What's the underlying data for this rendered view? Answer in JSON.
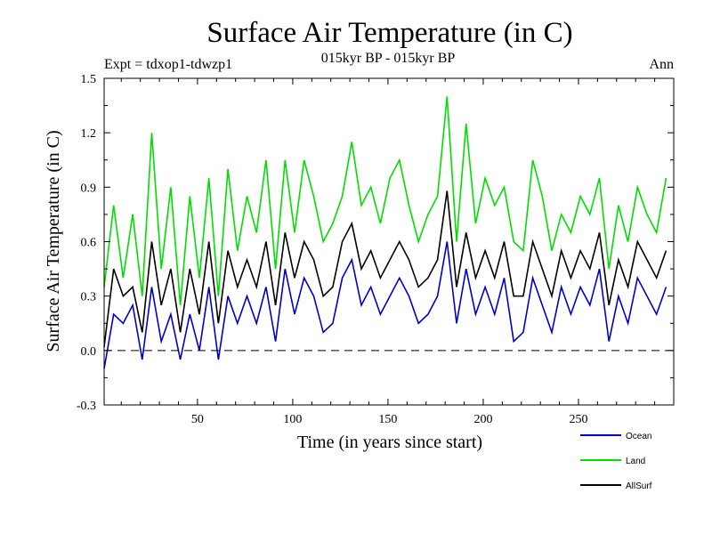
{
  "chart_data": {
    "type": "line",
    "title": "Surface Air Temperature (in C)",
    "subtitle": "015kyr BP - 015kyr BP",
    "experiment_label": "Expt = tdxop1-tdwzp1",
    "period_label": "Ann",
    "xlabel": "Time (in years since start)",
    "ylabel": "Surface Air Temperature (in C)",
    "xlim": [
      1,
      300
    ],
    "ylim": [
      -0.3,
      1.5
    ],
    "x_ticks": [
      50,
      100,
      150,
      200,
      250
    ],
    "x_tick_labels": [
      "50",
      "100",
      "150",
      "200",
      "250"
    ],
    "y_ticks": [
      -0.3,
      0.0,
      0.3,
      0.6,
      0.9,
      1.2,
      1.5
    ],
    "y_tick_labels": [
      "-0.3",
      "0.0",
      "0.3",
      "0.6",
      "0.9",
      "1.2",
      "1.5"
    ],
    "reference_line": 0.0,
    "legend": [
      {
        "name": "Ocean",
        "color": "#0000cc"
      },
      {
        "name": "Land",
        "color": "#00dd00"
      },
      {
        "name": "AllSurf",
        "color": "#000000"
      }
    ],
    "x_step": 5,
    "x_start": 1,
    "series": [
      {
        "name": "Land",
        "color": "#00dd00",
        "values": [
          0.35,
          0.8,
          0.4,
          0.75,
          0.3,
          1.2,
          0.45,
          0.9,
          0.25,
          0.85,
          0.4,
          0.95,
          0.3,
          1.0,
          0.55,
          0.85,
          0.65,
          1.05,
          0.45,
          1.05,
          0.65,
          1.05,
          0.85,
          0.6,
          0.7,
          0.85,
          1.15,
          0.8,
          0.9,
          0.7,
          0.95,
          1.05,
          0.8,
          0.6,
          0.75,
          0.85,
          1.4,
          0.6,
          1.25,
          0.7,
          0.95,
          0.8,
          0.9,
          0.6,
          0.55,
          1.05,
          0.85,
          0.55,
          0.75,
          0.65,
          0.85,
          0.75,
          0.95,
          0.45,
          0.8,
          0.6,
          0.9,
          0.75,
          0.65,
          0.95
        ]
      },
      {
        "name": "AllSurf",
        "color": "#000000",
        "values": [
          0.02,
          0.45,
          0.3,
          0.35,
          0.1,
          0.6,
          0.25,
          0.45,
          0.1,
          0.45,
          0.2,
          0.6,
          0.15,
          0.55,
          0.35,
          0.5,
          0.35,
          0.6,
          0.25,
          0.65,
          0.4,
          0.6,
          0.5,
          0.3,
          0.35,
          0.6,
          0.7,
          0.45,
          0.55,
          0.4,
          0.5,
          0.6,
          0.5,
          0.35,
          0.4,
          0.5,
          0.88,
          0.35,
          0.65,
          0.4,
          0.55,
          0.4,
          0.6,
          0.3,
          0.3,
          0.6,
          0.45,
          0.3,
          0.55,
          0.4,
          0.55,
          0.45,
          0.65,
          0.25,
          0.5,
          0.35,
          0.6,
          0.5,
          0.4,
          0.55
        ]
      },
      {
        "name": "Ocean",
        "color": "#0000cc",
        "values": [
          -0.1,
          0.2,
          0.15,
          0.25,
          -0.05,
          0.35,
          0.05,
          0.2,
          -0.05,
          0.2,
          0.0,
          0.35,
          -0.05,
          0.3,
          0.15,
          0.3,
          0.15,
          0.35,
          0.05,
          0.45,
          0.2,
          0.4,
          0.3,
          0.1,
          0.15,
          0.4,
          0.5,
          0.25,
          0.35,
          0.2,
          0.3,
          0.4,
          0.3,
          0.15,
          0.2,
          0.3,
          0.6,
          0.15,
          0.45,
          0.2,
          0.35,
          0.2,
          0.4,
          0.05,
          0.1,
          0.4,
          0.25,
          0.1,
          0.35,
          0.2,
          0.35,
          0.25,
          0.45,
          0.05,
          0.3,
          0.15,
          0.4,
          0.3,
          0.2,
          0.35
        ]
      }
    ]
  }
}
